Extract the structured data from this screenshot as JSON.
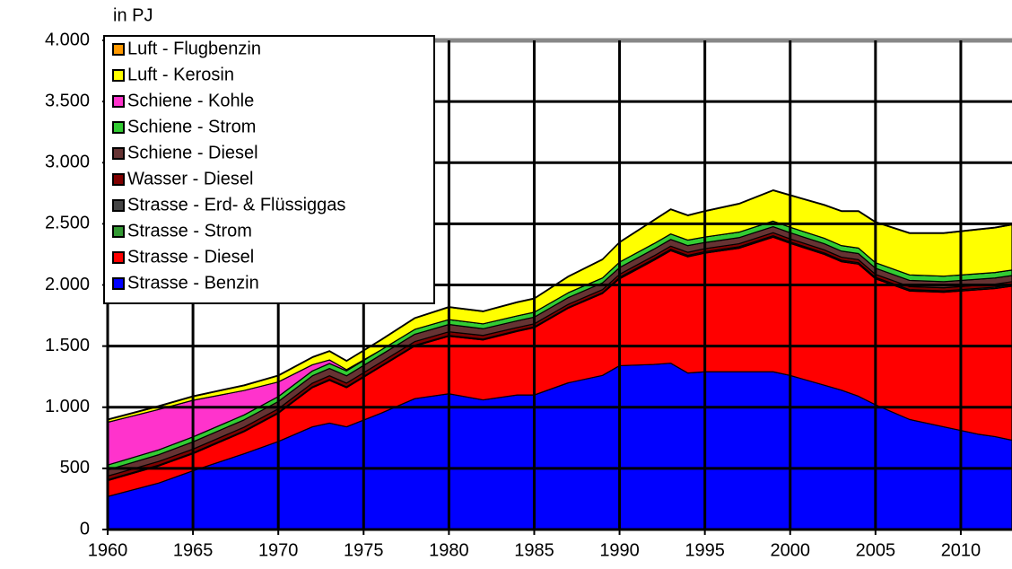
{
  "chart_data": {
    "type": "stacked_area",
    "y_label": "in PJ",
    "x": [
      1960,
      1963,
      1965,
      1968,
      1970,
      1972,
      1973,
      1974,
      1976,
      1978,
      1980,
      1982,
      1984,
      1985,
      1987,
      1989,
      1990,
      1992,
      1993,
      1994,
      1995,
      1997,
      1999,
      2000,
      2002,
      2003,
      2004,
      2005,
      2007,
      2009,
      2011,
      2012,
      2013
    ],
    "xlim": [
      1960,
      2013
    ],
    "xticks": [
      1960,
      1965,
      1970,
      1975,
      1980,
      1985,
      1990,
      1995,
      2000,
      2005,
      2010
    ],
    "ylim": [
      0,
      4000
    ],
    "yticks": [
      0,
      500,
      {
        "value": 1000,
        "label": "1.000"
      },
      {
        "value": 1500,
        "label": "1.500"
      },
      {
        "value": 2000,
        "label": "2.000"
      },
      {
        "value": 2500,
        "label": "2.500"
      },
      {
        "value": 3000,
        "label": "3.000"
      },
      {
        "value": 3500,
        "label": "3.500"
      },
      {
        "value": 4000,
        "label": "4.000"
      }
    ],
    "grid": true,
    "legend": "top-left",
    "series": [
      {
        "name": "Strasse - Benzin",
        "color": "#0000ff",
        "values": [
          270,
          380,
          480,
          620,
          720,
          840,
          870,
          840,
          950,
          1070,
          1110,
          1060,
          1100,
          1100,
          1200,
          1260,
          1340,
          1350,
          1360,
          1280,
          1290,
          1290,
          1290,
          1260,
          1180,
          1140,
          1090,
          1020,
          900,
          840,
          780,
          760,
          730
        ]
      },
      {
        "name": "Strasse - Diesel",
        "color": "#ff0000",
        "values": [
          130,
          140,
          140,
          180,
          230,
          320,
          350,
          320,
          380,
          430,
          470,
          490,
          520,
          550,
          610,
          670,
          710,
          850,
          920,
          950,
          970,
          1010,
          1100,
          1080,
          1070,
          1050,
          1080,
          1030,
          1050,
          1100,
          1180,
          1210,
          1260
        ]
      },
      {
        "name": "Strasse - Strom",
        "color": "#339933",
        "values": [
          2,
          2,
          2,
          2,
          2,
          2,
          2,
          2,
          2,
          2,
          2,
          2,
          2,
          2,
          2,
          2,
          2,
          2,
          2,
          2,
          2,
          2,
          2,
          2,
          2,
          2,
          2,
          2,
          2,
          2,
          2,
          2,
          2
        ]
      },
      {
        "name": "Strasse - Erd- & Flüssiggas",
        "color": "#444444",
        "values": [
          5,
          5,
          5,
          5,
          5,
          5,
          5,
          5,
          5,
          5,
          5,
          5,
          5,
          5,
          5,
          5,
          10,
          10,
          10,
          10,
          10,
          10,
          10,
          10,
          10,
          10,
          10,
          10,
          10,
          10,
          10,
          10,
          10
        ]
      },
      {
        "name": "Wasser - Diesel",
        "color": "#800000",
        "values": [
          30,
          30,
          30,
          30,
          30,
          30,
          30,
          30,
          30,
          30,
          30,
          30,
          25,
          25,
          25,
          25,
          25,
          25,
          25,
          25,
          25,
          25,
          25,
          25,
          25,
          25,
          25,
          25,
          25,
          25,
          25,
          25,
          25
        ]
      },
      {
        "name": "Schiene - Diesel",
        "color": "#663333",
        "values": [
          50,
          55,
          60,
          60,
          60,
          60,
          60,
          60,
          60,
          60,
          60,
          55,
          55,
          55,
          55,
          55,
          55,
          55,
          55,
          55,
          50,
          50,
          50,
          50,
          50,
          50,
          50,
          50,
          50,
          50,
          50,
          50,
          50
        ]
      },
      {
        "name": "Schiene - Strom",
        "color": "#33cc33",
        "values": [
          40,
          40,
          40,
          40,
          40,
          40,
          40,
          40,
          40,
          40,
          40,
          40,
          40,
          40,
          40,
          40,
          45,
          45,
          45,
          45,
          45,
          45,
          45,
          45,
          45,
          45,
          45,
          45,
          45,
          45,
          45,
          45,
          45
        ]
      },
      {
        "name": "Schiene - Kohle",
        "color": "#ff33cc",
        "values": [
          350,
          330,
          300,
          200,
          120,
          50,
          30,
          10,
          0,
          0,
          0,
          0,
          0,
          0,
          0,
          0,
          0,
          0,
          0,
          0,
          0,
          0,
          0,
          0,
          0,
          0,
          0,
          0,
          0,
          0,
          0,
          0,
          0
        ]
      },
      {
        "name": "Luft - Kerosin",
        "color": "#ffff00",
        "values": [
          20,
          25,
          30,
          40,
          50,
          60,
          70,
          70,
          80,
          90,
          100,
          100,
          110,
          110,
          130,
          150,
          160,
          190,
          200,
          200,
          210,
          230,
          250,
          260,
          270,
          280,
          300,
          330,
          340,
          350,
          360,
          365,
          370
        ]
      },
      {
        "name": "Luft - Flugbenzin",
        "color": "#ff9900",
        "values": [
          5,
          5,
          5,
          5,
          5,
          5,
          5,
          5,
          5,
          5,
          5,
          5,
          5,
          5,
          5,
          5,
          5,
          5,
          5,
          5,
          5,
          5,
          5,
          5,
          5,
          5,
          5,
          5,
          5,
          5,
          5,
          5,
          5
        ]
      }
    ]
  }
}
